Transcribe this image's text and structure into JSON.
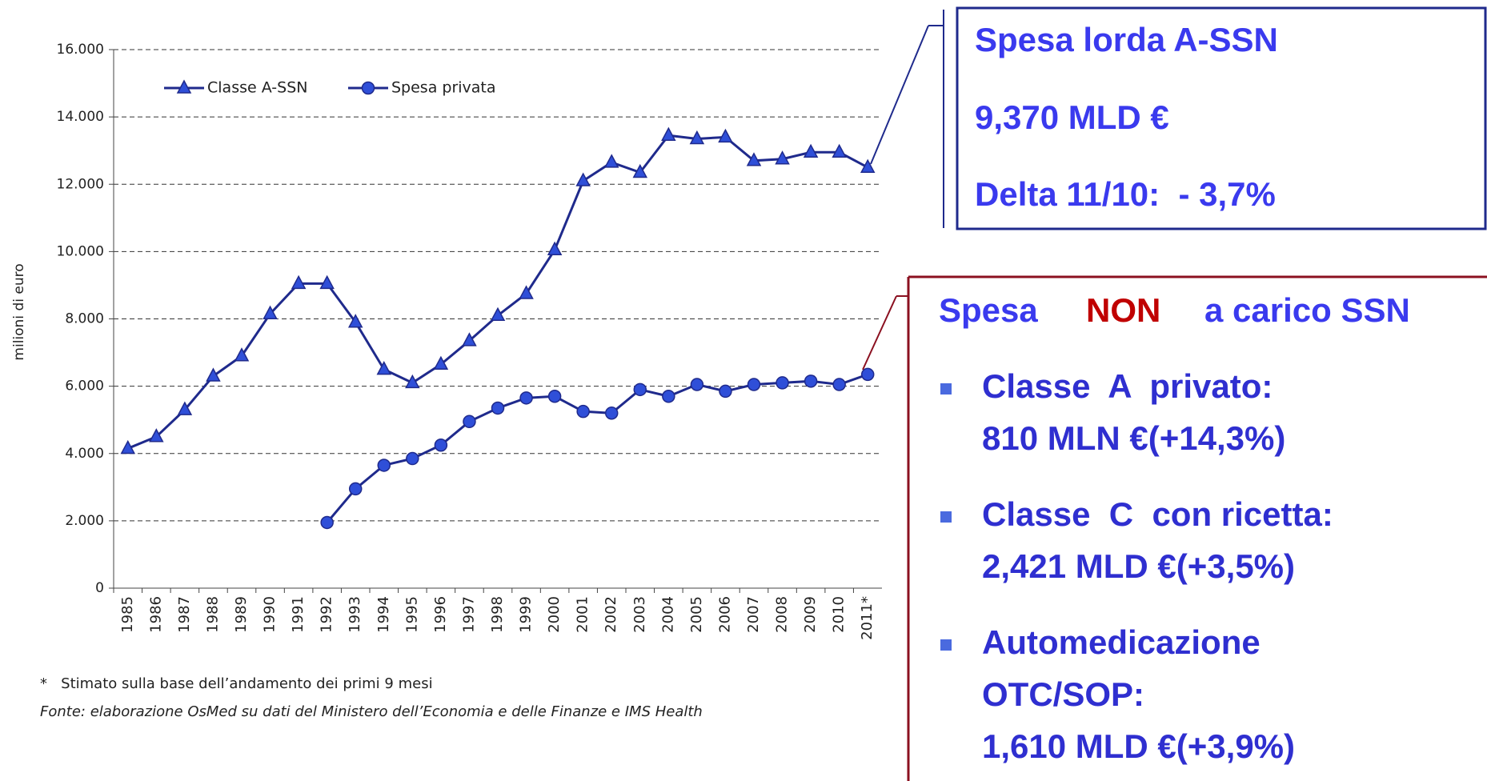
{
  "chart_data": {
    "type": "line",
    "y_label": "milioni di euro",
    "categories": [
      "1985",
      "1986",
      "1987",
      "1988",
      "1989",
      "1990",
      "1991",
      "1992",
      "1993",
      "1994",
      "1995",
      "1996",
      "1997",
      "1998",
      "1999",
      "2000",
      "2001",
      "2002",
      "2003",
      "2004",
      "2005",
      "2006",
      "2007",
      "2008",
      "2009",
      "2010",
      "2011*"
    ],
    "series": [
      {
        "name": "Classe A-SSN",
        "color": "#1f2a8c",
        "marker": "triangle",
        "values": [
          4150,
          4500,
          5300,
          6300,
          6900,
          8150,
          9050,
          9050,
          7900,
          6500,
          6100,
          6650,
          7350,
          8100,
          8750,
          10050,
          12100,
          12650,
          12350,
          13450,
          13350,
          13400,
          12700,
          12750,
          12950,
          12950,
          12500
        ]
      },
      {
        "name": "Spesa privata",
        "color": "#1f2a8c",
        "marker": "circle",
        "values": [
          null,
          null,
          null,
          null,
          null,
          null,
          null,
          1950,
          2950,
          3650,
          3850,
          4250,
          4950,
          5350,
          5650,
          5700,
          5250,
          5200,
          5900,
          5700,
          6050,
          5850,
          6050,
          6100,
          6150,
          6050,
          6350
        ]
      }
    ],
    "ylim": [
      0,
      16000
    ],
    "yticks": [
      0,
      {
        "value": 2000,
        "label": "2.000"
      },
      {
        "value": 4000,
        "label": "4.000"
      },
      {
        "value": 6000,
        "label": "6.000"
      },
      {
        "value": 8000,
        "label": "8.000"
      },
      {
        "value": 10000,
        "label": "10.000"
      },
      {
        "value": 12000,
        "label": "12.000"
      },
      {
        "value": 14000,
        "label": "14.000"
      },
      {
        "value": 16000,
        "label": "16.000"
      }
    ],
    "grid": true,
    "legend": "top-left",
    "footnote": "*   Stimato sulla base dell’andamento dei primi 9 mesi",
    "source": "Fonte: elaborazione OsMed su dati del Ministero dell’Economia e delle Finanze e IMS Health"
  },
  "panel_ssn": {
    "title": "Spesa lorda A-SSN",
    "amount": "9,370 MLD €",
    "delta": "Delta 11/10:  - 3,7%"
  },
  "panel_private": {
    "title_parts": [
      "Spesa",
      "NON",
      "a carico SSN"
    ],
    "items": [
      {
        "lines": [
          "Classe  A  privato:",
          "810 MLN €(+14,3%)"
        ]
      },
      {
        "lines": [
          "Classe  C  con ricetta:",
          "2,421 MLD €(+3,5%)"
        ]
      },
      {
        "lines": [
          "Automedicazione",
          "OTC/SOP:",
          "1,610 MLD €(+3,9%)"
        ]
      }
    ]
  }
}
